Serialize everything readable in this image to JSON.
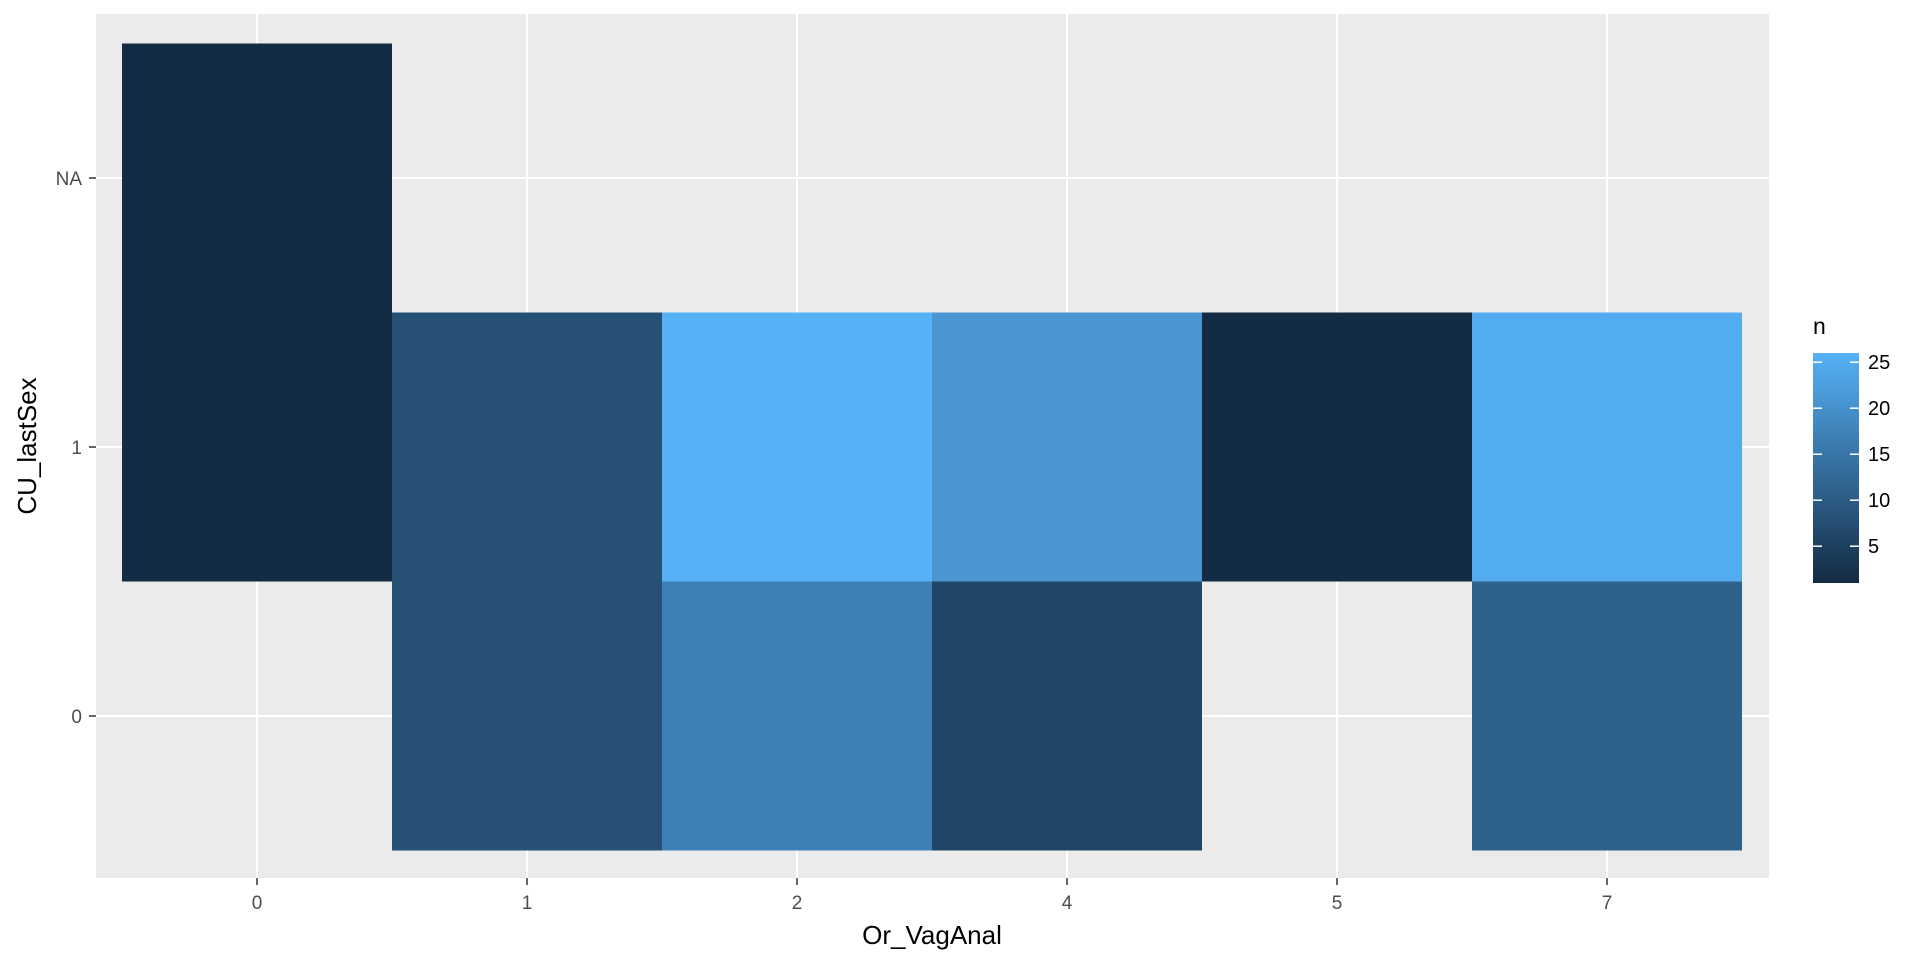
{
  "chart_data": {
    "type": "heatmap",
    "title": "",
    "xlabel": "Or_VagAnal",
    "ylabel": "CU_lastSex",
    "x_categories": [
      "0",
      "1",
      "2",
      "4",
      "5",
      "7"
    ],
    "y_categories": [
      "0",
      "1",
      "NA"
    ],
    "cells": [
      {
        "x": "0",
        "y": "NA",
        "n": 1
      },
      {
        "x": "0",
        "y": "1",
        "n": 1
      },
      {
        "x": "1",
        "y": "1",
        "n": 8
      },
      {
        "x": "1",
        "y": "0",
        "n": 8
      },
      {
        "x": "2",
        "y": "1",
        "n": 26
      },
      {
        "x": "2",
        "y": "0",
        "n": 17
      },
      {
        "x": "4",
        "y": "1",
        "n": 21
      },
      {
        "x": "4",
        "y": "0",
        "n": 6
      },
      {
        "x": "5",
        "y": "1",
        "n": 1
      },
      {
        "x": "7",
        "y": "1",
        "n": 25
      },
      {
        "x": "7",
        "y": "0",
        "n": 11
      }
    ],
    "legend": {
      "title": "n",
      "breaks": [
        5,
        10,
        15,
        20,
        25
      ],
      "range": [
        1,
        26
      ],
      "low_color": "#132B43",
      "high_color": "#56B1F7",
      "position": "right"
    },
    "panel_background": "#EBEBEB",
    "grid_color": "#FFFFFF",
    "grid": true
  }
}
